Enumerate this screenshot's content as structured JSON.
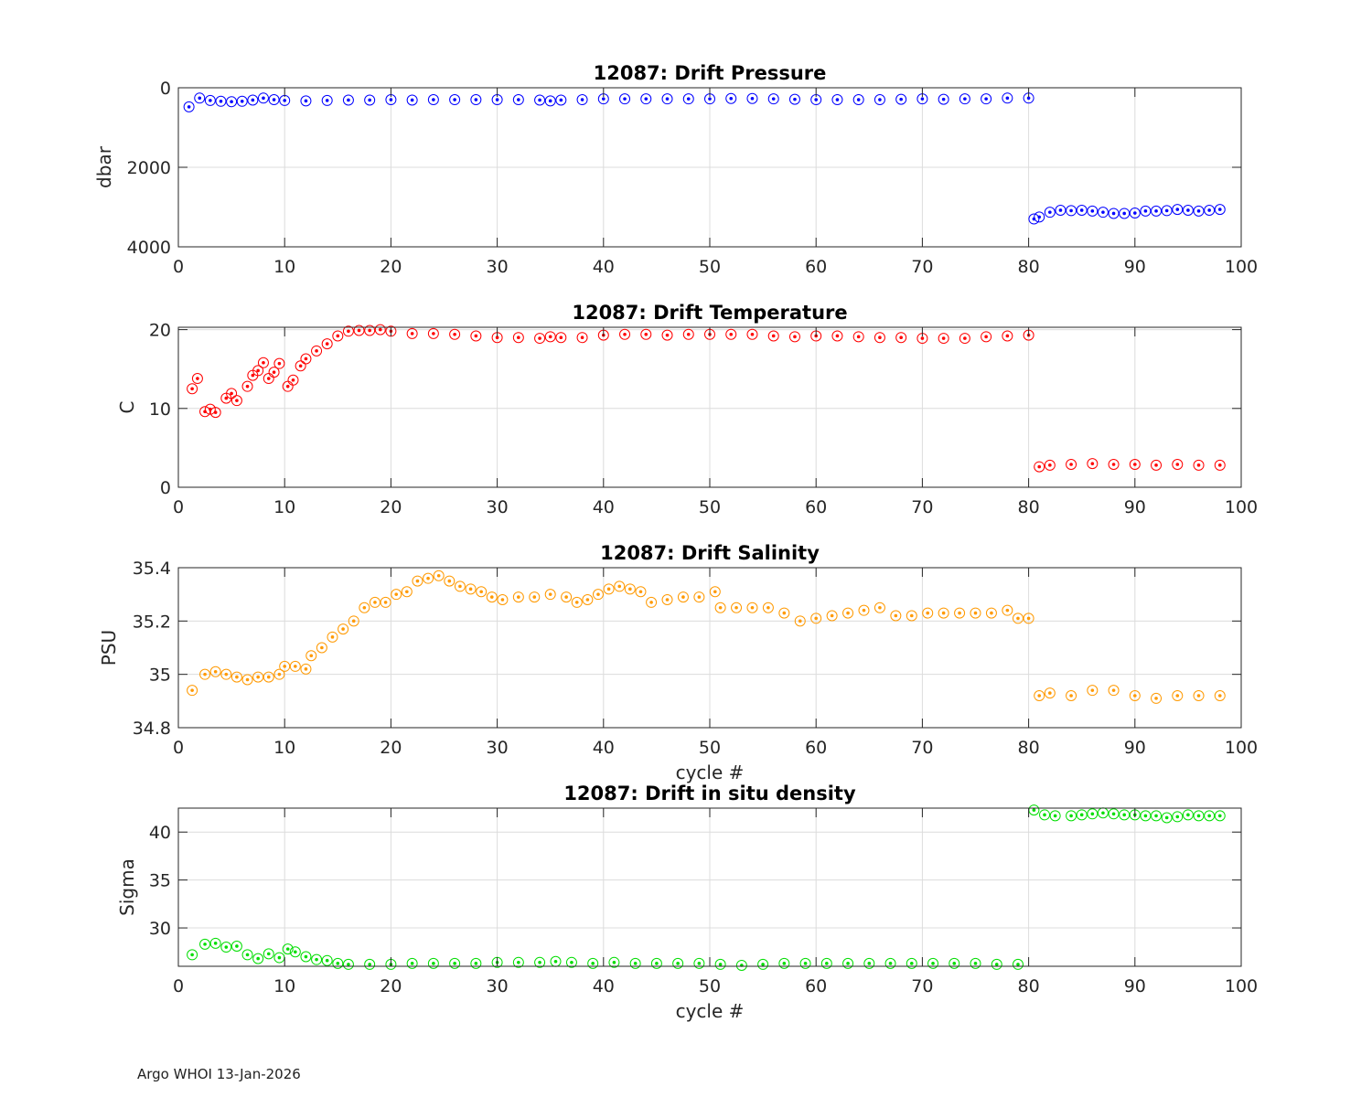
{
  "footer": "Argo WHOI 13-Jan-2026",
  "chart_data": [
    {
      "type": "scatter",
      "title": "12087: Drift Pressure",
      "xlabel": "",
      "ylabel": "dbar",
      "xlim": [
        0,
        100
      ],
      "ylim": [
        0,
        4000
      ],
      "y_reversed": true,
      "xticks": [
        0,
        10,
        20,
        30,
        40,
        50,
        60,
        70,
        80,
        90,
        100
      ],
      "yticks": [
        0,
        2000,
        4000
      ],
      "grid": true,
      "color": "#0000ff",
      "marker": "open-circle",
      "series": [
        {
          "x": [
            1,
            2,
            3,
            4,
            5,
            6,
            7,
            8,
            9,
            10,
            12,
            14,
            16,
            18,
            20,
            22,
            24,
            26,
            28,
            30,
            32,
            34,
            35,
            36,
            38,
            40,
            42,
            44,
            46,
            48,
            50,
            52,
            54,
            56,
            58,
            60,
            62,
            64,
            66,
            68,
            70,
            72,
            74,
            76,
            78,
            80,
            80.5,
            81,
            82,
            83,
            84,
            85,
            86,
            87,
            88,
            89,
            90,
            91,
            92,
            93,
            94,
            95,
            96,
            97,
            98
          ],
          "y": [
            480,
            260,
            320,
            340,
            350,
            340,
            310,
            260,
            300,
            320,
            330,
            320,
            310,
            310,
            300,
            310,
            300,
            300,
            300,
            300,
            300,
            310,
            330,
            310,
            300,
            280,
            280,
            280,
            280,
            280,
            280,
            270,
            270,
            280,
            290,
            300,
            300,
            300,
            300,
            290,
            280,
            290,
            280,
            280,
            260,
            260,
            3300,
            3250,
            3130,
            3080,
            3090,
            3080,
            3100,
            3130,
            3160,
            3160,
            3150,
            3100,
            3100,
            3090,
            3060,
            3080,
            3100,
            3080,
            3060
          ]
        }
      ]
    },
    {
      "type": "scatter",
      "title": "12087: Drift Temperature",
      "xlabel": "",
      "ylabel": "C",
      "xlim": [
        0,
        100
      ],
      "ylim": [
        0,
        20.3
      ],
      "xticks": [
        0,
        10,
        20,
        30,
        40,
        50,
        60,
        70,
        80,
        90,
        100
      ],
      "yticks": [
        0,
        10,
        20
      ],
      "grid": true,
      "color": "#ff0000",
      "marker": "open-circle",
      "series": [
        {
          "x": [
            1.3,
            1.8,
            2.5,
            3,
            3.5,
            4.5,
            5,
            5.5,
            6.5,
            7,
            7.5,
            8,
            8.5,
            9,
            9.5,
            10.3,
            10.8,
            11.5,
            12,
            13,
            14,
            15,
            16,
            17,
            18,
            19,
            20,
            22,
            24,
            26,
            28,
            30,
            32,
            34,
            35,
            36,
            38,
            40,
            42,
            44,
            46,
            48,
            50,
            52,
            54,
            56,
            58,
            60,
            62,
            64,
            66,
            68,
            70,
            72,
            74,
            76,
            78,
            80,
            81,
            82,
            84,
            86,
            88,
            90,
            92,
            94,
            96,
            98
          ],
          "y": [
            12.5,
            13.8,
            9.6,
            9.9,
            9.5,
            11.3,
            11.9,
            11.0,
            12.8,
            14.2,
            14.8,
            15.8,
            13.8,
            14.6,
            15.7,
            12.8,
            13.6,
            15.4,
            16.3,
            17.3,
            18.2,
            19.2,
            19.8,
            19.9,
            19.9,
            20.0,
            19.8,
            19.5,
            19.5,
            19.4,
            19.2,
            19.0,
            19.0,
            18.9,
            19.1,
            19.0,
            19.0,
            19.3,
            19.4,
            19.4,
            19.3,
            19.4,
            19.4,
            19.4,
            19.4,
            19.2,
            19.1,
            19.2,
            19.2,
            19.1,
            19.0,
            19.0,
            18.9,
            18.9,
            18.9,
            19.1,
            19.2,
            19.3,
            2.6,
            2.8,
            2.9,
            3.0,
            2.9,
            2.9,
            2.8,
            2.9,
            2.8,
            2.8
          ]
        }
      ]
    },
    {
      "type": "scatter",
      "title": "12087: Drift Salinity",
      "xlabel": "cycle #",
      "ylabel": "PSU",
      "xlim": [
        0,
        100
      ],
      "ylim": [
        34.8,
        35.4
      ],
      "xticks": [
        0,
        10,
        20,
        30,
        40,
        50,
        60,
        70,
        80,
        90,
        100
      ],
      "yticks": [
        34.8,
        35,
        35.2,
        35.4
      ],
      "ytick_labels": [
        "34.8",
        "35",
        "35.2",
        "35.4"
      ],
      "grid": true,
      "color": "#ff9900",
      "marker": "open-circle",
      "series": [
        {
          "x": [
            1.3,
            2.5,
            3.5,
            4.5,
            5.5,
            6.5,
            7.5,
            8.5,
            9.5,
            10,
            11,
            12,
            12.5,
            13.5,
            14.5,
            15.5,
            16.5,
            17.5,
            18.5,
            19.5,
            20.5,
            21.5,
            22.5,
            23.5,
            24.5,
            25.5,
            26.5,
            27.5,
            28.5,
            29.5,
            30.5,
            32,
            33.5,
            35,
            36.5,
            37.5,
            38.5,
            39.5,
            40.5,
            41.5,
            42.5,
            43.5,
            44.5,
            46,
            47.5,
            49,
            50.5,
            51,
            52.5,
            54,
            55.5,
            57,
            58.5,
            60,
            61.5,
            63,
            64.5,
            66,
            67.5,
            69,
            70.5,
            72,
            73.5,
            75,
            76.5,
            78,
            79,
            80,
            81,
            82,
            84,
            86,
            88,
            90,
            92,
            94,
            96,
            98
          ],
          "y": [
            34.94,
            35.0,
            35.01,
            35.0,
            34.99,
            34.98,
            34.99,
            34.99,
            35.0,
            35.03,
            35.03,
            35.02,
            35.07,
            35.1,
            35.14,
            35.17,
            35.2,
            35.25,
            35.27,
            35.27,
            35.3,
            35.31,
            35.35,
            35.36,
            35.37,
            35.35,
            35.33,
            35.32,
            35.31,
            35.29,
            35.28,
            35.29,
            35.29,
            35.3,
            35.29,
            35.27,
            35.28,
            35.3,
            35.32,
            35.33,
            35.32,
            35.31,
            35.27,
            35.28,
            35.29,
            35.29,
            35.31,
            35.25,
            35.25,
            35.25,
            35.25,
            35.23,
            35.2,
            35.21,
            35.22,
            35.23,
            35.24,
            35.25,
            35.22,
            35.22,
            35.23,
            35.23,
            35.23,
            35.23,
            35.23,
            35.24,
            35.21,
            35.21,
            34.92,
            34.93,
            34.92,
            34.94,
            34.94,
            34.92,
            34.91,
            34.92,
            34.92,
            34.92
          ]
        }
      ]
    },
    {
      "type": "scatter",
      "title": "12087: Drift in situ density",
      "xlabel": "cycle #",
      "ylabel": "Sigma",
      "xlim": [
        0,
        100
      ],
      "ylim": [
        26,
        42.5
      ],
      "xticks": [
        0,
        10,
        20,
        30,
        40,
        50,
        60,
        70,
        80,
        90,
        100
      ],
      "yticks": [
        30,
        35,
        40
      ],
      "grid": true,
      "color": "#00dd00",
      "marker": "open-circle",
      "series": [
        {
          "x": [
            1.3,
            2.5,
            3.5,
            4.5,
            5.5,
            6.5,
            7.5,
            8.5,
            9.5,
            10.3,
            11,
            12,
            13,
            14,
            15,
            16,
            18,
            20,
            22,
            24,
            26,
            28,
            30,
            32,
            34,
            35.5,
            37,
            39,
            41,
            43,
            45,
            47,
            49,
            51,
            53,
            55,
            57,
            59,
            61,
            63,
            65,
            67,
            69,
            71,
            73,
            75,
            77,
            79,
            80.5,
            81.5,
            82.5,
            84,
            85,
            86,
            87,
            88,
            89,
            90,
            91,
            92,
            93,
            94,
            95,
            96,
            97,
            98
          ],
          "y": [
            27.2,
            28.3,
            28.4,
            28.0,
            28.1,
            27.2,
            26.8,
            27.3,
            26.9,
            27.8,
            27.5,
            27.0,
            26.7,
            26.6,
            26.3,
            26.2,
            26.2,
            26.2,
            26.3,
            26.3,
            26.3,
            26.3,
            26.4,
            26.4,
            26.4,
            26.5,
            26.4,
            26.3,
            26.4,
            26.3,
            26.3,
            26.3,
            26.3,
            26.2,
            26.1,
            26.2,
            26.3,
            26.3,
            26.3,
            26.3,
            26.3,
            26.3,
            26.3,
            26.3,
            26.3,
            26.3,
            26.2,
            26.2,
            42.3,
            41.8,
            41.7,
            41.7,
            41.8,
            41.9,
            42.0,
            41.9,
            41.8,
            41.8,
            41.7,
            41.7,
            41.5,
            41.6,
            41.8,
            41.7,
            41.7,
            41.7
          ]
        }
      ]
    }
  ]
}
